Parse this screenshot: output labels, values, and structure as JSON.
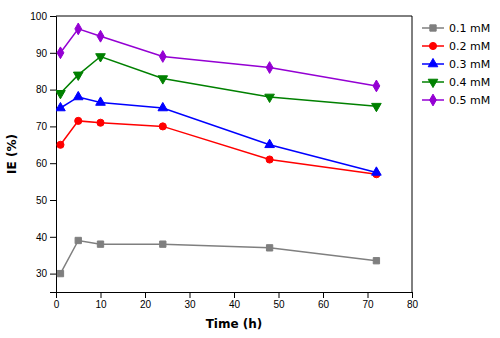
{
  "chart_data": {
    "type": "line",
    "x": [
      1,
      5,
      10,
      24,
      48,
      72
    ],
    "series": [
      {
        "name": "0.1 mM",
        "color": "#7f7f7f",
        "marker": "square",
        "values": [
          30,
          39,
          38,
          38,
          37,
          33.5
        ]
      },
      {
        "name": "0.2 mM",
        "color": "#ff0000",
        "marker": "circle",
        "values": [
          65,
          71.5,
          71,
          70,
          61,
          57
        ]
      },
      {
        "name": "0.3 mM",
        "color": "#0000ff",
        "marker": "triangle-up",
        "values": [
          75,
          78,
          76.5,
          75,
          65,
          57.5
        ]
      },
      {
        "name": "0.4 mM",
        "color": "#008000",
        "marker": "triangle-down",
        "values": [
          79,
          84,
          89,
          83,
          78,
          75.5
        ]
      },
      {
        "name": "0.5 mM",
        "color": "#9400d3",
        "marker": "diamond",
        "values": [
          90,
          96.5,
          94.5,
          89,
          86,
          81
        ]
      }
    ],
    "xlabel": "Time (h)",
    "ylabel": "IE (%)",
    "xlim": [
      0,
      80
    ],
    "ylim": [
      25,
      100
    ],
    "xticks": [
      0,
      10,
      20,
      30,
      40,
      50,
      60,
      70,
      80
    ],
    "yticks": [
      30,
      40,
      50,
      60,
      70,
      80,
      90,
      100
    ],
    "legend": "upper right",
    "grid": false
  }
}
